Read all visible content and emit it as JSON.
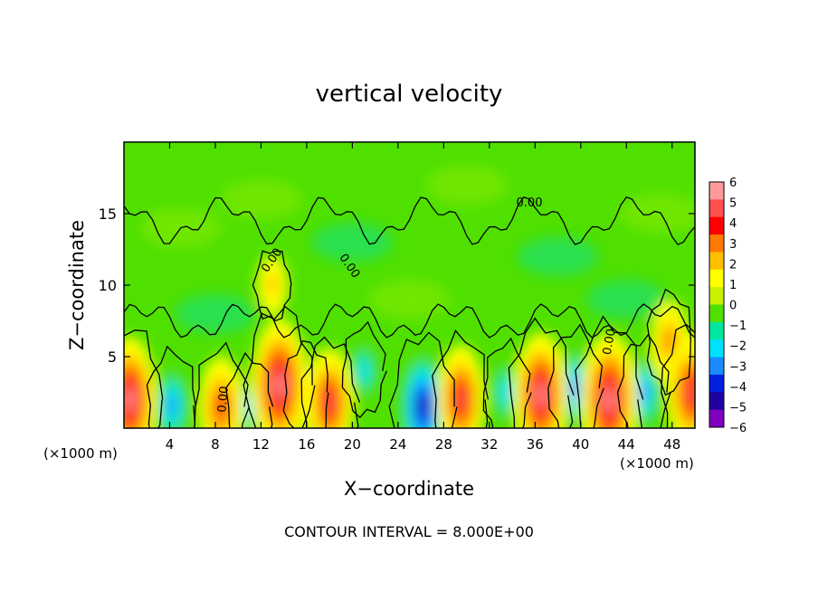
{
  "chart_data": {
    "type": "heatmap",
    "title": "vertical velocity",
    "xlabel": "X−coordinate",
    "ylabel": "Z−coordinate",
    "x_unit_left": "(×1000 m)",
    "x_unit_right": "(×1000 m)",
    "xlim": [
      0,
      50
    ],
    "ylim": [
      0,
      20
    ],
    "x_ticks": [
      4,
      8,
      12,
      16,
      20,
      24,
      28,
      32,
      36,
      40,
      44,
      48
    ],
    "y_ticks": [
      5,
      10,
      15
    ],
    "footer": "CONTOUR INTERVAL = 8.000E+00",
    "colorbar": {
      "levels": [
        6,
        5,
        4,
        3,
        2,
        1,
        0,
        -1,
        -2,
        -3,
        -4,
        -5,
        -6
      ],
      "labels": [
        "6",
        "5",
        "4",
        "3",
        "2",
        "1",
        "0",
        "−1",
        "−2",
        "−3",
        "−4",
        "−5",
        "−6"
      ],
      "colors": [
        "#ff9a9a",
        "#ff5050",
        "#ff0000",
        "#ff7a00",
        "#ffc000",
        "#ffff00",
        "#c8f000",
        "#50e000",
        "#00e8a0",
        "#00e0ff",
        "#1a8cff",
        "#0020e0",
        "#2000a0",
        "#8000c0"
      ]
    },
    "contour_labels": [
      {
        "text": "0.00",
        "x": 35.5,
        "z": 15.5,
        "angle": 0
      },
      {
        "text": "0.00",
        "x": 13.2,
        "z": 11.6,
        "angle": -55
      },
      {
        "text": "0.00",
        "x": 19.5,
        "z": 11.2,
        "angle": 55
      },
      {
        "text": "0.00",
        "x": 42.8,
        "z": 6.0,
        "angle": -80
      },
      {
        "text": "0.00",
        "x": 9.0,
        "z": 2.0,
        "angle": -85
      }
    ],
    "updraft_cores": [
      {
        "x": 0.5,
        "z": 2.0,
        "w": 5.5
      },
      {
        "x": 8.5,
        "z": 1.5,
        "w": 4.0
      },
      {
        "x": 13.6,
        "z": 3.0,
        "w": 6.0
      },
      {
        "x": 18.0,
        "z": 1.8,
        "w": 4.5
      },
      {
        "x": 29.5,
        "z": 2.0,
        "w": 4.5
      },
      {
        "x": 36.5,
        "z": 2.3,
        "w": 5.5
      },
      {
        "x": 42.5,
        "z": 2.0,
        "w": 6.0
      },
      {
        "x": 47.8,
        "z": 6.0,
        "w": 3.0
      },
      {
        "x": 49.7,
        "z": 2.5,
        "w": 5.0
      },
      {
        "x": 13.0,
        "z": 10.0,
        "w": 1.5
      }
    ],
    "downdraft_cores": [
      {
        "x": 4.2,
        "z": 1.6,
        "w": -3.5
      },
      {
        "x": 11.0,
        "z": 1.5,
        "w": -3.0
      },
      {
        "x": 16.0,
        "z": 2.5,
        "w": -3.0
      },
      {
        "x": 21.0,
        "z": 4.0,
        "w": -2.5
      },
      {
        "x": 26.2,
        "z": 1.5,
        "w": -5.5
      },
      {
        "x": 33.5,
        "z": 2.5,
        "w": -3.0
      },
      {
        "x": 39.5,
        "z": 2.8,
        "w": -4.0
      },
      {
        "x": 45.5,
        "z": 2.5,
        "w": -3.5
      }
    ]
  }
}
